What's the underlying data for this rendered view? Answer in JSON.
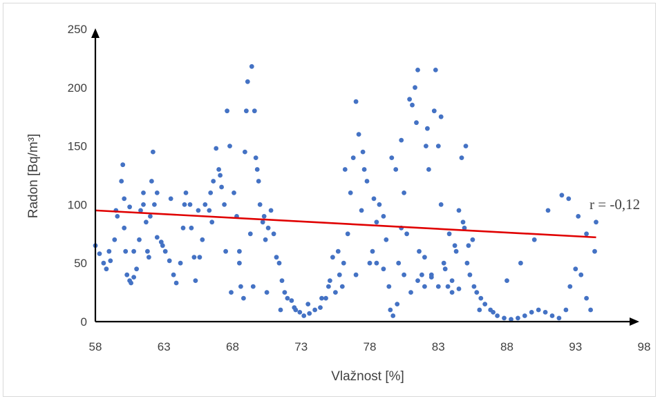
{
  "chart_data": {
    "type": "scatter",
    "xlabel": "Vlažnost [%]",
    "ylabel": "Radon [Bq/m³]",
    "xlim": [
      58,
      98
    ],
    "ylim": [
      0,
      250
    ],
    "x_ticks": [
      "58",
      "63",
      "68",
      "73",
      "78",
      "83",
      "88",
      "93",
      "98"
    ],
    "y_ticks": [
      "0",
      "50",
      "100",
      "150",
      "200",
      "250"
    ],
    "annotation": "r = -0,12",
    "point_color": "#4472c4",
    "trend_color": "#e00000",
    "trendline": {
      "x": [
        58,
        94.5
      ],
      "y": [
        95,
        72
      ]
    },
    "series": [
      {
        "values": [
          [
            58.0,
            65
          ],
          [
            58.3,
            58
          ],
          [
            58.6,
            50
          ],
          [
            58.8,
            45
          ],
          [
            59.1,
            52
          ],
          [
            59.4,
            70
          ],
          [
            59.6,
            90
          ],
          [
            59.9,
            120
          ],
          [
            60.0,
            134
          ],
          [
            60.1,
            105
          ],
          [
            60.1,
            80
          ],
          [
            60.2,
            60
          ],
          [
            60.3,
            40
          ],
          [
            60.5,
            35
          ],
          [
            60.6,
            33
          ],
          [
            60.8,
            38
          ],
          [
            61.0,
            45
          ],
          [
            61.2,
            70
          ],
          [
            61.3,
            95
          ],
          [
            61.5,
            110
          ],
          [
            61.7,
            85
          ],
          [
            61.8,
            60
          ],
          [
            62.0,
            90
          ],
          [
            62.1,
            120
          ],
          [
            62.2,
            145
          ],
          [
            62.3,
            100
          ],
          [
            62.5,
            72
          ],
          [
            62.8,
            68
          ],
          [
            63.1,
            60
          ],
          [
            63.4,
            52
          ],
          [
            63.7,
            40
          ],
          [
            63.9,
            33
          ],
          [
            64.2,
            50
          ],
          [
            64.4,
            80
          ],
          [
            64.6,
            110
          ],
          [
            64.9,
            100
          ],
          [
            65.0,
            80
          ],
          [
            65.2,
            55
          ],
          [
            65.3,
            35
          ],
          [
            65.6,
            55
          ],
          [
            65.8,
            70
          ],
          [
            66.0,
            100
          ],
          [
            66.3,
            95
          ],
          [
            66.6,
            120
          ],
          [
            66.8,
            148
          ],
          [
            67.0,
            130
          ],
          [
            67.2,
            115
          ],
          [
            67.4,
            100
          ],
          [
            67.6,
            180
          ],
          [
            67.8,
            150
          ],
          [
            67.9,
            25
          ],
          [
            68.1,
            110
          ],
          [
            68.3,
            90
          ],
          [
            68.5,
            60
          ],
          [
            68.6,
            30
          ],
          [
            68.8,
            20
          ],
          [
            69.0,
            180
          ],
          [
            69.1,
            205
          ],
          [
            69.3,
            75
          ],
          [
            69.4,
            218
          ],
          [
            69.6,
            180
          ],
          [
            69.7,
            140
          ],
          [
            69.9,
            120
          ],
          [
            70.0,
            100
          ],
          [
            70.2,
            85
          ],
          [
            70.4,
            70
          ],
          [
            70.6,
            80
          ],
          [
            70.8,
            95
          ],
          [
            71.0,
            75
          ],
          [
            71.2,
            55
          ],
          [
            71.4,
            50
          ],
          [
            71.6,
            35
          ],
          [
            71.8,
            25
          ],
          [
            72.0,
            20
          ],
          [
            72.3,
            18
          ],
          [
            72.6,
            10
          ],
          [
            72.9,
            8
          ],
          [
            73.2,
            5
          ],
          [
            73.6,
            7
          ],
          [
            74.0,
            10
          ],
          [
            74.4,
            12
          ],
          [
            74.8,
            20
          ],
          [
            75.1,
            35
          ],
          [
            75.3,
            55
          ],
          [
            75.5,
            25
          ],
          [
            75.8,
            40
          ],
          [
            76.1,
            50
          ],
          [
            76.4,
            75
          ],
          [
            76.6,
            110
          ],
          [
            76.8,
            140
          ],
          [
            77.0,
            188
          ],
          [
            77.2,
            160
          ],
          [
            77.4,
            95
          ],
          [
            77.6,
            130
          ],
          [
            77.8,
            120
          ],
          [
            78.0,
            50
          ],
          [
            78.2,
            60
          ],
          [
            78.5,
            85
          ],
          [
            78.7,
            100
          ],
          [
            79.0,
            90
          ],
          [
            79.2,
            70
          ],
          [
            79.4,
            30
          ],
          [
            79.5,
            10
          ],
          [
            79.7,
            5
          ],
          [
            79.9,
            130
          ],
          [
            80.1,
            50
          ],
          [
            80.3,
            80
          ],
          [
            80.5,
            110
          ],
          [
            80.7,
            75
          ],
          [
            80.9,
            190
          ],
          [
            81.1,
            185
          ],
          [
            81.3,
            200
          ],
          [
            81.5,
            215
          ],
          [
            81.6,
            60
          ],
          [
            81.8,
            40
          ],
          [
            82.0,
            30
          ],
          [
            82.1,
            150
          ],
          [
            82.3,
            130
          ],
          [
            82.5,
            40
          ],
          [
            82.7,
            180
          ],
          [
            82.8,
            215
          ],
          [
            83.0,
            150
          ],
          [
            83.2,
            100
          ],
          [
            83.4,
            50
          ],
          [
            83.7,
            30
          ],
          [
            84.0,
            25
          ],
          [
            84.3,
            60
          ],
          [
            84.5,
            95
          ],
          [
            84.7,
            140
          ],
          [
            84.9,
            80
          ],
          [
            85.1,
            50
          ],
          [
            85.3,
            40
          ],
          [
            85.6,
            30
          ],
          [
            85.8,
            25
          ],
          [
            86.1,
            20
          ],
          [
            86.4,
            15
          ],
          [
            86.8,
            10
          ],
          [
            87.3,
            5
          ],
          [
            87.8,
            3
          ],
          [
            88.3,
            2
          ],
          [
            88.8,
            3
          ],
          [
            89.3,
            5
          ],
          [
            89.8,
            8
          ],
          [
            90.3,
            10
          ],
          [
            90.8,
            8
          ],
          [
            91.3,
            5
          ],
          [
            91.8,
            3
          ],
          [
            92.3,
            10
          ],
          [
            92.6,
            30
          ],
          [
            93.0,
            45
          ],
          [
            93.4,
            40
          ],
          [
            93.8,
            20
          ],
          [
            94.1,
            10
          ],
          [
            94.4,
            60
          ],
          [
            94.5,
            85
          ],
          [
            88.0,
            35
          ],
          [
            89.0,
            50
          ],
          [
            90.0,
            70
          ],
          [
            91.0,
            95
          ],
          [
            92.0,
            108
          ],
          [
            92.5,
            105
          ],
          [
            93.2,
            90
          ],
          [
            93.8,
            75
          ],
          [
            82.0,
            55
          ],
          [
            83.5,
            45
          ],
          [
            84.0,
            35
          ],
          [
            80.0,
            15
          ],
          [
            81.0,
            25
          ],
          [
            81.5,
            35
          ],
          [
            82.5,
            38
          ],
          [
            83.0,
            30
          ],
          [
            84.5,
            28
          ],
          [
            80.5,
            40
          ],
          [
            79.0,
            45
          ],
          [
            78.5,
            50
          ],
          [
            77.0,
            40
          ],
          [
            76.0,
            30
          ],
          [
            74.5,
            20
          ],
          [
            73.5,
            15
          ],
          [
            72.5,
            12
          ],
          [
            71.5,
            10
          ],
          [
            70.5,
            25
          ],
          [
            69.5,
            30
          ],
          [
            68.5,
            50
          ],
          [
            67.5,
            60
          ],
          [
            66.5,
            85
          ],
          [
            65.5,
            95
          ],
          [
            64.5,
            100
          ],
          [
            63.5,
            105
          ],
          [
            62.5,
            110
          ],
          [
            61.5,
            100
          ],
          [
            60.5,
            98
          ],
          [
            59.5,
            95
          ],
          [
            59.0,
            60
          ],
          [
            60.8,
            60
          ],
          [
            61.9,
            55
          ],
          [
            62.9,
            65
          ],
          [
            66.4,
            110
          ],
          [
            67.1,
            125
          ],
          [
            68.9,
            145
          ],
          [
            69.8,
            130
          ],
          [
            70.3,
            90
          ],
          [
            75.0,
            30
          ],
          [
            75.7,
            60
          ],
          [
            76.2,
            130
          ],
          [
            77.5,
            145
          ],
          [
            78.3,
            105
          ],
          [
            79.6,
            140
          ],
          [
            80.3,
            155
          ],
          [
            81.4,
            170
          ],
          [
            82.2,
            165
          ],
          [
            83.2,
            175
          ],
          [
            84.2,
            65
          ],
          [
            85.0,
            150
          ],
          [
            85.5,
            70
          ],
          [
            86.0,
            10
          ],
          [
            87.0,
            8
          ],
          [
            83.8,
            75
          ],
          [
            84.8,
            85
          ],
          [
            85.2,
            65
          ]
        ]
      }
    ]
  }
}
